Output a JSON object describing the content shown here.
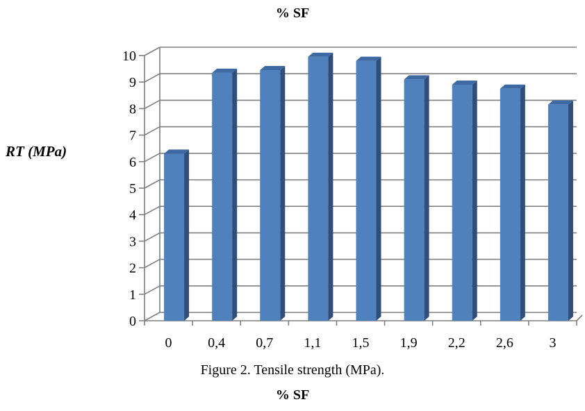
{
  "chart_data": {
    "type": "bar",
    "title": "% SF",
    "xlabel": "% SF",
    "ylabel": "RT (MPa)",
    "caption": "Figure 2. Tensile strength (MPa).",
    "categories": [
      "0",
      "0,4",
      "0,7",
      "1,1",
      "1,5",
      "1,9",
      "2,2",
      "2,6",
      "3"
    ],
    "series": [
      {
        "values": [
          6.3,
          9.35,
          9.45,
          9.95,
          9.8,
          9.1,
          8.9,
          8.75,
          8.15
        ]
      }
    ],
    "ylim": [
      0,
      10
    ],
    "yticks": [
      "0",
      "1",
      "2",
      "3",
      "4",
      "5",
      "6",
      "7",
      "8",
      "9",
      "10"
    ],
    "grid": true,
    "style": "3d-bar",
    "colors": {
      "bar_front": "#4f81bd",
      "bar_side": "#2f4f7a",
      "bar_top": "#3d6aa3",
      "grid": "#7f7f7f"
    }
  }
}
